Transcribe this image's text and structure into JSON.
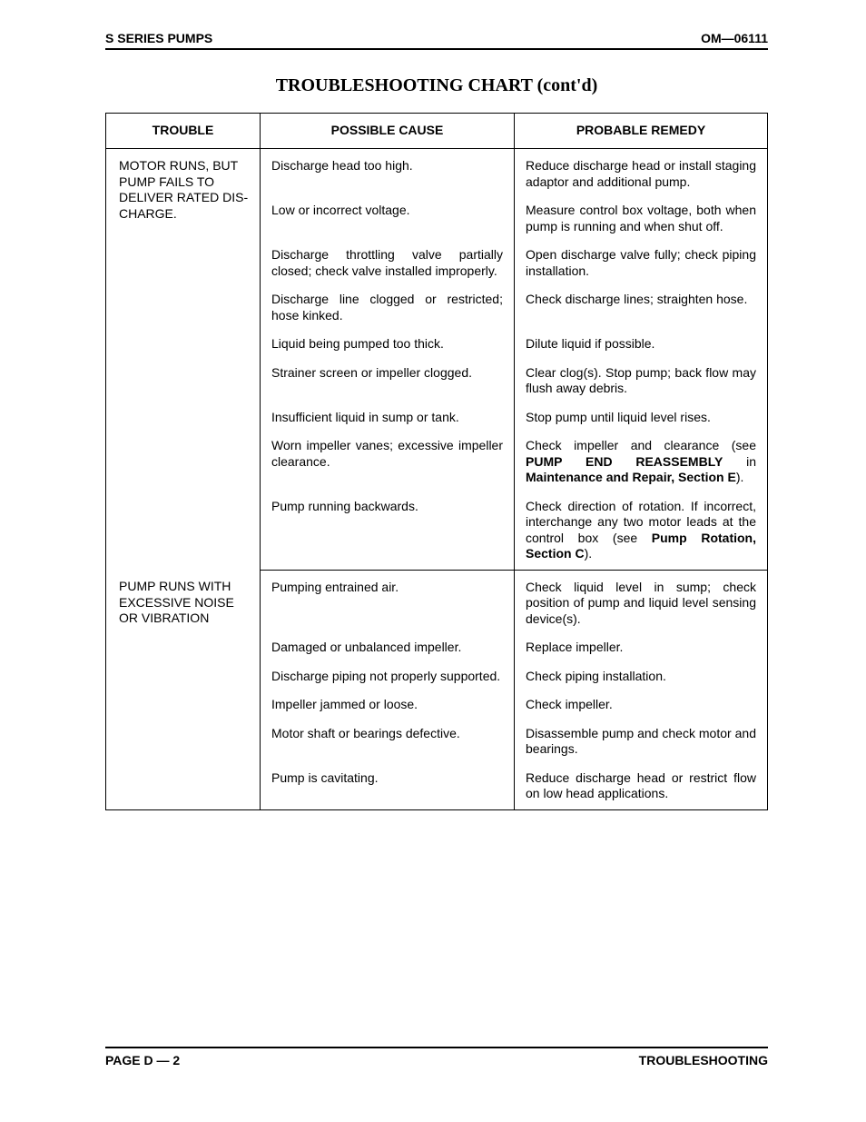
{
  "header": {
    "left": "S SERIES PUMPS",
    "right": "OM—06111"
  },
  "title": "TROUBLESHOOTING CHART (cont'd)",
  "table": {
    "columns": [
      "TROUBLE",
      "POSSIBLE CAUSE",
      "PROBABLE REMEDY"
    ],
    "sections": [
      {
        "trouble": "MOTOR RUNS, BUT PUMP FAILS TO DELIVER RATED DIS­CHARGE.",
        "rows": [
          {
            "cause": "Discharge head too high.",
            "remedy_pre": "Reduce discharge head or install staging adaptor and additional pump."
          },
          {
            "cause": "Low or incorrect voltage.",
            "remedy_pre": "Measure control box voltage, both when pump is running and when shut off."
          },
          {
            "cause": "Discharge throttling valve partially closed; check valve installed improp­erly.",
            "remedy_pre": "Open discharge valve fully; check piping installation."
          },
          {
            "cause": "Discharge line clogged or restricted; hose kinked.",
            "remedy_pre": "Check discharge lines; straighten hose."
          },
          {
            "cause": "Liquid being pumped too thick.",
            "remedy_pre": "Dilute liquid if possible."
          },
          {
            "cause": "Strainer screen or impeller clogged.",
            "remedy_pre": "Clear clog(s). Stop pump; back flow may flush away debris."
          },
          {
            "cause": "Insufficient liquid in sump or tank.",
            "remedy_pre": "Stop pump until liquid level rises."
          },
          {
            "cause": "Worn impeller vanes; excessive im­peller clearance.",
            "remedy_pre": "Check impeller and clearance (see ",
            "remedy_bold": "PUMP END REASSEMBLY",
            "remedy_mid": " in ",
            "remedy_bold2": "Maintenance and Repair, Section E",
            "remedy_post": ")."
          },
          {
            "cause": "Pump running backwards.",
            "remedy_pre": "Check direction of rotation. If incor­rect, interchange any two motor leads at the control box (see ",
            "remedy_bold": "Pump Rotation, Section C",
            "remedy_post": ")."
          }
        ]
      },
      {
        "trouble": "PUMP RUNS WITH EXCES­SIVE NOISE OR VIBRATION",
        "rows": [
          {
            "cause": "Pumping entrained air.",
            "remedy_pre": "Check liquid level in sump; check position of pump and liquid level sensing device(s)."
          },
          {
            "cause": "Damaged or unbalanced impeller.",
            "remedy_pre": "Replace impeller."
          },
          {
            "cause": "Discharge piping not properly sup­ported.",
            "remedy_pre": "Check piping installation."
          },
          {
            "cause": "Impeller jammed or loose.",
            "remedy_pre": "Check impeller."
          },
          {
            "cause": "Motor shaft or bearings defective.",
            "remedy_pre": "Disassemble pump and check mo­tor and bearings."
          },
          {
            "cause": "Pump is cavitating.",
            "remedy_pre": "Reduce discharge head or restrict flow on low head applications."
          }
        ]
      }
    ]
  },
  "footer": {
    "left": "PAGE D — 2",
    "right": "TROUBLESHOOTING"
  }
}
